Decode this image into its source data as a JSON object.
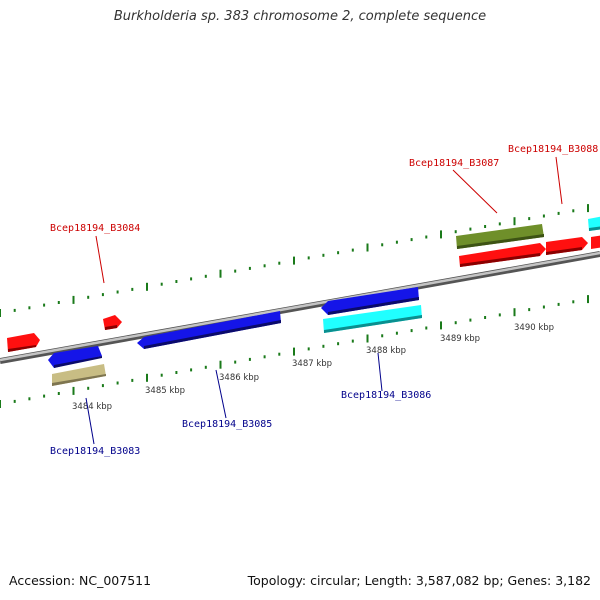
{
  "title": "Burkholderia sp. 383 chromosome 2, complete sequence",
  "footer": {
    "accession": "Accession: NC_007511",
    "topology": "Topology: circular; Length: 3,587,082 bp; Genes: 3,182"
  },
  "colors": {
    "forward_label": "#cc0000",
    "reverse_label": "#00008b",
    "backbone": "#888888",
    "tick": "#1a7a1a",
    "red_gene": "#ff1010",
    "blue_gene": "#1515e8",
    "cyan_gene": "#20ffff",
    "olive_gene": "#6f8f2a",
    "khaki_gene": "#c8bd84"
  },
  "kbp_ticks": [
    "3484 kbp",
    "3485 kbp",
    "3486 kbp",
    "3487 kbp",
    "3488 kbp",
    "3489 kbp",
    "3490 kbp"
  ],
  "gene_labels": {
    "forward": [
      "Bcep18194_B3084",
      "Bcep18194_B3087",
      "Bcep18194_B3088"
    ],
    "reverse": [
      "Bcep18194_B3083",
      "Bcep18194_B3085",
      "Bcep18194_B3086"
    ]
  }
}
